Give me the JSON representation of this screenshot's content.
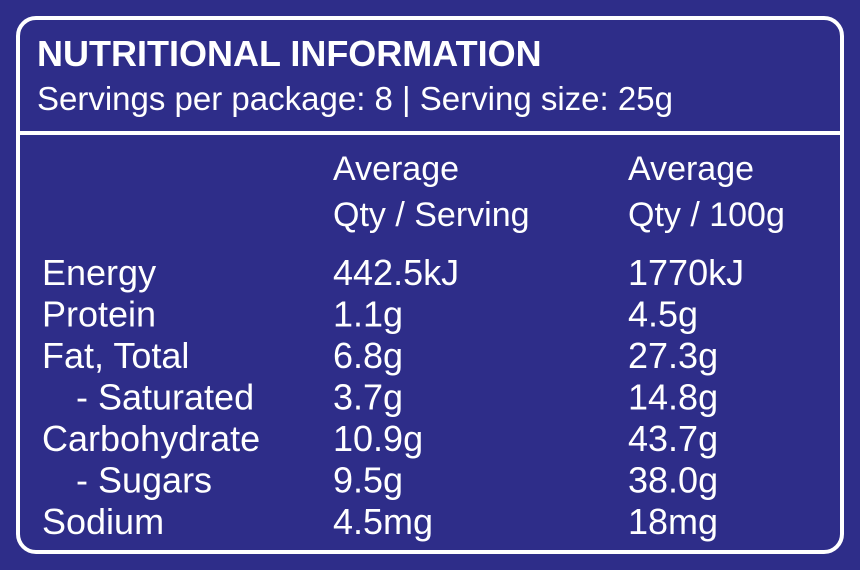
{
  "header": {
    "title": "NUTRITIONAL INFORMATION",
    "subtitle": "Servings per package: 8 | Serving size: 25g"
  },
  "table": {
    "columns": [
      [
        "Average",
        "Qty / Serving"
      ],
      [
        "Average",
        "Qty / 100g"
      ]
    ],
    "rows": [
      [
        "Energy",
        "442.5kJ",
        "1770kJ"
      ],
      [
        "Protein",
        "1.1g",
        "4.5g"
      ],
      [
        "Fat, Total",
        "6.8g",
        "27.3g"
      ],
      [
        "- Saturated",
        "3.7g",
        "14.8g"
      ],
      [
        "Carbohydrate",
        "10.9g",
        "43.7g"
      ],
      [
        "- Sugars",
        "9.5g",
        "38.0g"
      ],
      [
        "Sodium",
        "4.5mg",
        "18mg"
      ]
    ]
  }
}
